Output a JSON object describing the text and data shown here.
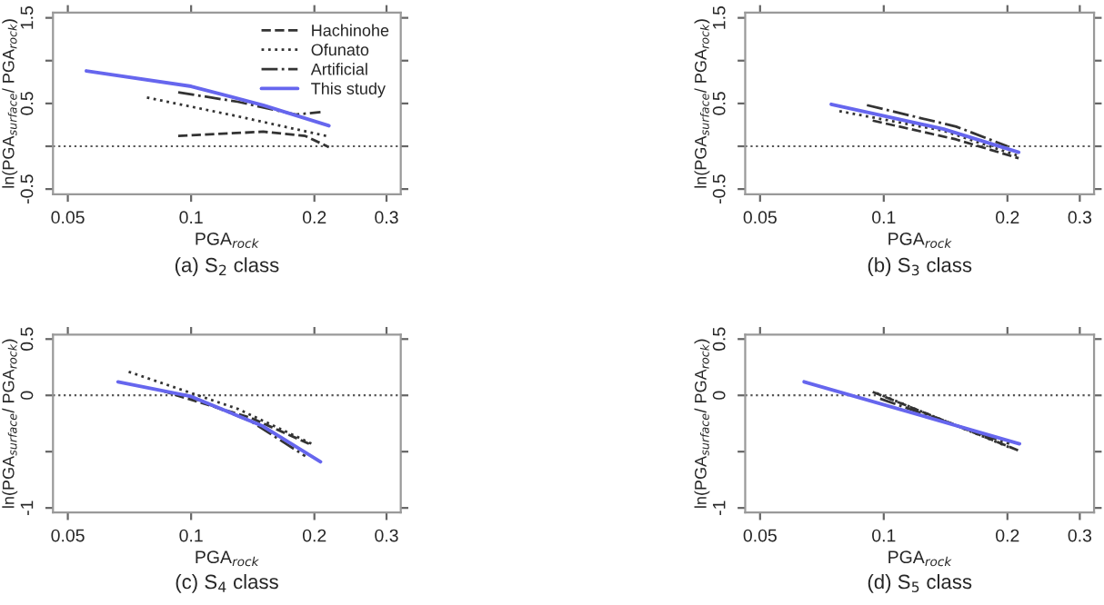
{
  "chart_data": [
    {
      "type": "line",
      "title": "(a) S$_{2}$ class",
      "xlabel": "PGA$_{rock}$",
      "ylabel": "ln(PGA$_{surface}$/ PGA$_{rock}$)",
      "log": "x",
      "legend": "top right",
      "xlim": [
        0.046,
        0.325
      ],
      "xticks": [
        0.05,
        0.1,
        0.2,
        0.3
      ],
      "ylim": [
        -0.56,
        1.56
      ],
      "yticks": [
        -0.5,
        {
          "value": 0,
          "label": null
        },
        0.5,
        {
          "value": 1,
          "label": null
        },
        1.5
      ],
      "ref_lines": [
        {
          "axis": "y",
          "value": 0,
          "color": "#555555",
          "line_style": "dotted"
        }
      ],
      "series": [
        {
          "name": "Hachinohe",
          "color": "#333333",
          "line_style": "dashed",
          "x": [
            0.093,
            0.15,
            0.19,
            0.217
          ],
          "values": [
            0.12,
            0.17,
            0.12,
            -0.01
          ]
        },
        {
          "name": "Ofunato",
          "color": "#333333",
          "line_style": "dotted",
          "x": [
            0.078,
            0.13,
            0.214
          ],
          "values": [
            0.57,
            0.35,
            0.12
          ]
        },
        {
          "name": "Artificial",
          "color": "#333333",
          "line_style": "dashdot",
          "x": [
            0.093,
            0.13,
            0.18,
            0.207
          ],
          "values": [
            0.63,
            0.52,
            0.37,
            0.4
          ]
        },
        {
          "name": "This study",
          "color": "#6666ee",
          "line_style": "solid",
          "x": [
            0.0555,
            0.1,
            0.15,
            0.217
          ],
          "values": [
            0.88,
            0.7,
            0.48,
            0.24
          ]
        }
      ]
    },
    {
      "type": "line",
      "title": "(b) S$_{3}$ class",
      "xlabel": "PGA$_{rock}$",
      "ylabel": "ln(PGA$_{surface}$/ PGA$_{rock}$)",
      "log": "x",
      "xlim": [
        0.046,
        0.325
      ],
      "xticks": [
        0.05,
        0.1,
        0.2,
        0.3
      ],
      "ylim": [
        -0.56,
        1.56
      ],
      "yticks": [
        -0.5,
        {
          "value": 0,
          "label": null
        },
        0.5,
        {
          "value": 1,
          "label": null
        },
        1.5
      ],
      "ref_lines": [
        {
          "axis": "y",
          "value": 0,
          "color": "#555555",
          "line_style": "dotted"
        }
      ],
      "series": [
        {
          "color": "#333333",
          "line_style": "dashed",
          "x": [
            0.094,
            0.15,
            0.213
          ],
          "values": [
            0.3,
            0.08,
            -0.14
          ]
        },
        {
          "color": "#333333",
          "line_style": "dotted",
          "x": [
            0.078,
            0.14,
            0.215
          ],
          "values": [
            0.41,
            0.18,
            -0.12
          ]
        },
        {
          "color": "#333333",
          "line_style": "dashdot",
          "x": [
            0.091,
            0.15,
            0.2
          ],
          "values": [
            0.48,
            0.23,
            0.0
          ]
        },
        {
          "color": "#6666ee",
          "line_style": "solid",
          "x": [
            0.0745,
            0.14,
            0.213
          ],
          "values": [
            0.49,
            0.2,
            -0.07
          ]
        }
      ]
    },
    {
      "type": "line",
      "title": "(c) S$_{4}$ class",
      "xlabel": "PGA$_{rock}$",
      "ylabel": "ln(PGA$_{surface}$/ PGA$_{rock}$)",
      "log": "x",
      "xlim": [
        0.046,
        0.325
      ],
      "xticks": [
        0.05,
        0.1,
        0.2,
        0.3
      ],
      "ylim": [
        -1.04,
        0.54
      ],
      "yticks": [
        -1,
        {
          "value": -0.5,
          "label": null
        },
        0,
        0.5
      ],
      "ref_lines": [
        {
          "axis": "y",
          "value": 0,
          "color": "#555555",
          "line_style": "dotted"
        }
      ],
      "series": [
        {
          "color": "#333333",
          "line_style": "dashed",
          "x": [
            0.085,
            0.14,
            0.194
          ],
          "values": [
            0.04,
            -0.2,
            -0.43
          ]
        },
        {
          "color": "#333333",
          "line_style": "dotted",
          "x": [
            0.0704,
            0.13,
            0.197
          ],
          "values": [
            0.21,
            -0.12,
            -0.43
          ]
        },
        {
          "color": "#333333",
          "line_style": "dashdot",
          "x": [
            0.096,
            0.14,
            0.19
          ],
          "values": [
            0.01,
            -0.23,
            -0.54
          ]
        },
        {
          "color": "#6666ee",
          "line_style": "solid",
          "x": [
            0.0663,
            0.1,
            0.149,
            0.207
          ],
          "values": [
            0.12,
            -0.01,
            -0.27,
            -0.59
          ]
        }
      ]
    },
    {
      "type": "line",
      "title": "(d) S$_{5}$ class",
      "xlabel": "PGA$_{rock}$",
      "ylabel": "ln(PGA$_{surface}$/ PGA$_{rock}$)",
      "log": "x",
      "xlim": [
        0.046,
        0.325
      ],
      "xticks": [
        0.05,
        0.1,
        0.2,
        0.3
      ],
      "ylim": [
        -1.04,
        0.54
      ],
      "yticks": [
        -1,
        {
          "value": -0.5,
          "label": null
        },
        0,
        0.5
      ],
      "ref_lines": [
        {
          "axis": "y",
          "value": 0,
          "color": "#555555",
          "line_style": "dotted"
        }
      ],
      "series": [
        {
          "color": "#333333",
          "line_style": "dashed",
          "x": [
            0.094,
            0.213
          ],
          "values": [
            0.03,
            -0.49
          ]
        },
        {
          "color": "#333333",
          "line_style": "dotted",
          "x": [
            0.096,
            0.205
          ],
          "values": [
            0.02,
            -0.47
          ]
        },
        {
          "color": "#333333",
          "line_style": "dashdot",
          "x": [
            0.098,
            0.202
          ],
          "values": [
            -0.03,
            -0.43
          ]
        },
        {
          "color": "#6666ee",
          "line_style": "solid",
          "x": [
            0.064,
            0.214
          ],
          "values": [
            0.12,
            -0.43
          ]
        }
      ]
    }
  ]
}
